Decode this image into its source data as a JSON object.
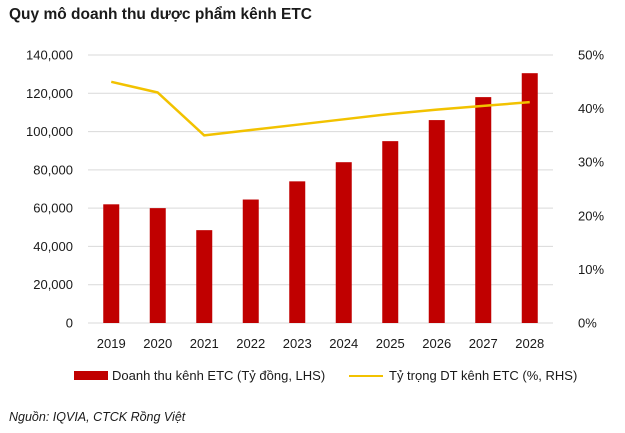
{
  "title": "Quy mô doanh thu dược phẩm kênh ETC",
  "source": "Nguồn: IQVIA, CTCK Rồng Việt",
  "colors": {
    "bar": "#c00000",
    "line": "#f2c200",
    "grid": "#d9d9d9"
  },
  "chart_data": {
    "type": "bar",
    "categories": [
      "2019",
      "2020",
      "2021",
      "2022",
      "2023",
      "2024",
      "2025",
      "2026",
      "2027",
      "2028"
    ],
    "series": [
      {
        "name": "Doanh thu kênh ETC (Tỷ đồng, LHS)",
        "kind": "bar",
        "axis": "left",
        "values": [
          62000,
          60000,
          48500,
          64500,
          74000,
          84000,
          95000,
          106000,
          118000,
          130500
        ]
      },
      {
        "name": "Tỷ trọng DT kênh ETC (%, RHS)",
        "kind": "line",
        "axis": "right",
        "values": [
          45,
          43,
          35,
          36,
          37,
          38,
          39,
          39.8,
          40.5,
          41.2
        ]
      }
    ],
    "ylim": [
      0,
      140000
    ],
    "yticks": [
      "0",
      "20,000",
      "40,000",
      "60,000",
      "80,000",
      "100,000",
      "120,000",
      "140,000"
    ],
    "y2lim": [
      0,
      50
    ],
    "y2ticks": [
      "0%",
      "10%",
      "20%",
      "30%",
      "40%",
      "50%"
    ],
    "grid": true,
    "legend": "bottom"
  }
}
